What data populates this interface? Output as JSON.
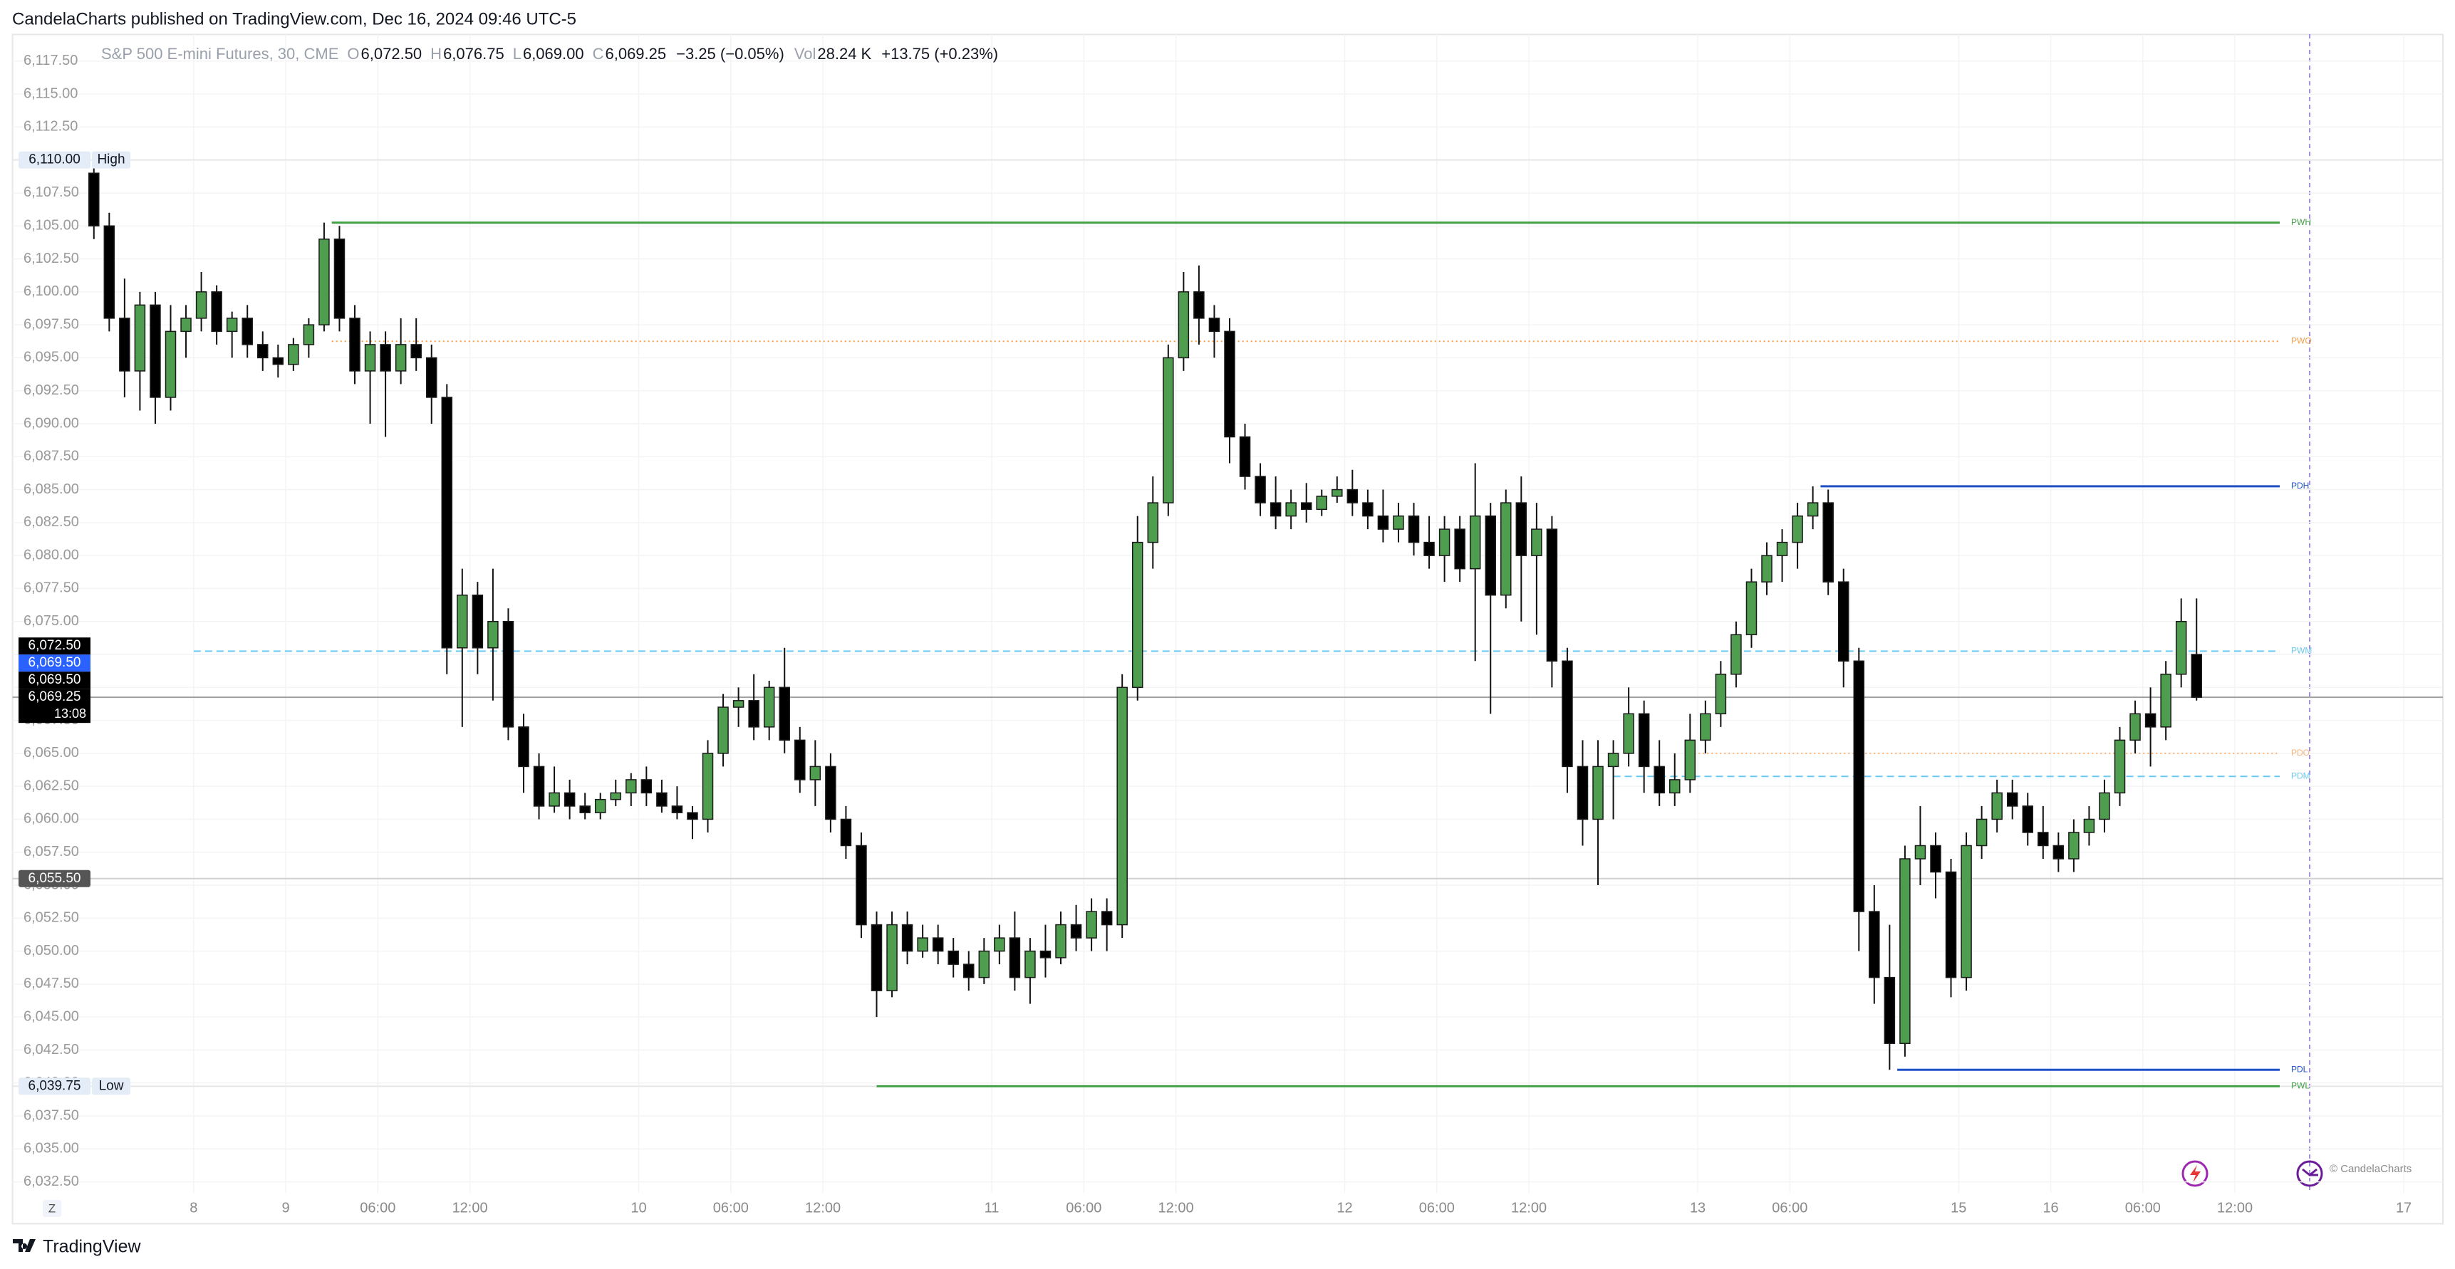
{
  "header": {
    "title": "CandelaCharts published on TradingView.com, Dec 16, 2024 09:46 UTC-5"
  },
  "footer": {
    "brand": "TradingView",
    "watermark": "© CandelaCharts",
    "zoom": "Z"
  },
  "legend": {
    "symbol": "S&P 500 E-mini Futures, 30, CME",
    "fields": [
      {
        "key": "O",
        "value": "6,072.50"
      },
      {
        "key": "H",
        "value": "6,076.75"
      },
      {
        "key": "L",
        "value": "6,069.00"
      },
      {
        "key": "C",
        "value": "6,069.25"
      }
    ],
    "change": "−3.25 (−0.05%)",
    "vol_key": "Vol",
    "vol": "28.24 K",
    "vol_change": "+13.75 (+0.23%)"
  },
  "chart_data": {
    "type": "candlestick",
    "name": "S&P 500 E-mini Futures, 30, CME",
    "up_color": "#4f9d4f",
    "down_color": "#000000",
    "wick_color": "#111111",
    "grid": true,
    "x": [
      0,
      2,
      4,
      6,
      8,
      10,
      12,
      14,
      16,
      18,
      20,
      22,
      24,
      26,
      28,
      30,
      32,
      34,
      36,
      38,
      40,
      42,
      44,
      46,
      48,
      50,
      52,
      54,
      56,
      58,
      60,
      62,
      64,
      66,
      68,
      70,
      72,
      74,
      76,
      78,
      80,
      82,
      84,
      86,
      88,
      90,
      92,
      94,
      96,
      98,
      100,
      102,
      104,
      106,
      108,
      110,
      112,
      114,
      116,
      118,
      120,
      122,
      124,
      126,
      128,
      130,
      132,
      134,
      136,
      138,
      140,
      142,
      144,
      146,
      148,
      150,
      152,
      154,
      156,
      158,
      160,
      162,
      164,
      166,
      168,
      170,
      172,
      174,
      176,
      178,
      180,
      182,
      184,
      186,
      188,
      190,
      192,
      194,
      196,
      198,
      200,
      202,
      204,
      206,
      208,
      210,
      212,
      214,
      216,
      218,
      220,
      222,
      224,
      226,
      228,
      230,
      232,
      234,
      236,
      238,
      240,
      242,
      244,
      246,
      248,
      250,
      252,
      254,
      256,
      258,
      260,
      262,
      264,
      266,
      268,
      270,
      272,
      274
    ],
    "open": [
      6109,
      6105,
      6098,
      6094,
      6099,
      6092,
      6097,
      6098,
      6100,
      6097,
      6098,
      6096,
      6095,
      6094.5,
      6096,
      6097.5,
      6104,
      6098,
      6094,
      6096,
      6094,
      6096,
      6095,
      6092,
      6073,
      6077,
      6073,
      6075,
      6067,
      6064,
      6061,
      6062,
      6061,
      6060.5,
      6061.5,
      6062,
      6063,
      6062,
      6061,
      6060.5,
      6060,
      6065,
      6068.5,
      6069,
      6067,
      6070,
      6066,
      6063,
      6064,
      6060,
      6058,
      6052,
      6047,
      6052,
      6050,
      6051,
      6050,
      6049,
      6048,
      6050,
      6051,
      6048,
      6050,
      6049.5,
      6052,
      6051,
      6053,
      6052,
      6070,
      6081,
      6084,
      6095,
      6100,
      6098,
      6097,
      6089,
      6086,
      6084,
      6083,
      6084,
      6083.5,
      6084.5,
      6085,
      6084,
      6083,
      6082,
      6083,
      6081,
      6080,
      6082,
      6079,
      6083,
      6077,
      6084,
      6080,
      6082,
      6072,
      6064,
      6060,
      6064,
      6065,
      6068,
      6064,
      6062,
      6063,
      6066,
      6068,
      6071,
      6074,
      6078,
      6080,
      6081,
      6083,
      6084,
      6078,
      6072,
      6053,
      6048,
      6043,
      6057,
      6058,
      6056,
      6048,
      6058,
      6060,
      6062,
      6061,
      6059,
      6058,
      6057,
      6059,
      6060,
      6062,
      6066,
      6068,
      6067,
      6071,
      6072.5
    ],
    "high": [
      6109.5,
      6106,
      6101,
      6100,
      6100,
      6099,
      6099,
      6101.5,
      6100.5,
      6098.5,
      6099,
      6097,
      6096,
      6096.5,
      6098,
      6105.25,
      6105,
      6099,
      6097,
      6097,
      6098,
      6098,
      6096,
      6093,
      6079,
      6078,
      6079,
      6076,
      6068,
      6065,
      6064,
      6063,
      6062,
      6062,
      6063,
      6063.5,
      6064,
      6063,
      6062.5,
      6061,
      6066,
      6069.5,
      6070,
      6071,
      6070.5,
      6073,
      6067,
      6066,
      6065,
      6061,
      6059,
      6053,
      6053,
      6053,
      6052,
      6052,
      6051,
      6050,
      6051,
      6052,
      6053,
      6051,
      6052,
      6053,
      6053.5,
      6054,
      6054,
      6071,
      6083,
      6086,
      6096,
      6101.5,
      6102,
      6099,
      6098,
      6090,
      6087,
      6086,
      6085,
      6085.5,
      6085,
      6086,
      6086.5,
      6085,
      6085,
      6084,
      6084,
      6083,
      6083,
      6083,
      6087,
      6084,
      6085,
      6086,
      6084,
      6083,
      6073,
      6066,
      6066,
      6066,
      6070,
      6069,
      6066,
      6065,
      6068,
      6069,
      6072,
      6075,
      6079,
      6081,
      6082,
      6084,
      6085.25,
      6085,
      6079,
      6073,
      6055,
      6052,
      6058,
      6061,
      6059,
      6057,
      6059,
      6061,
      6063,
      6063,
      6062,
      6061,
      6059,
      6060,
      6061,
      6063,
      6067,
      6069,
      6070,
      6072,
      6076.75,
      6076.75
    ],
    "low": [
      6104,
      6097,
      6092,
      6091,
      6090,
      6091,
      6095,
      6097,
      6096,
      6095,
      6095,
      6094,
      6093.5,
      6094,
      6095,
      6097,
      6097,
      6093,
      6090,
      6089,
      6093,
      6094,
      6090,
      6071,
      6067,
      6071,
      6069,
      6066,
      6062,
      6060,
      6060.5,
      6060,
      6060,
      6060,
      6061,
      6061,
      6061,
      6060.5,
      6060,
      6058.5,
      6059,
      6064,
      6067,
      6066,
      6066,
      6065,
      6062,
      6061,
      6059,
      6057,
      6051,
      6045,
      6046.5,
      6049,
      6049.5,
      6049,
      6048,
      6047,
      6047.5,
      6049,
      6047,
      6046,
      6048,
      6049,
      6050,
      6050,
      6050,
      6051,
      6069,
      6079,
      6083,
      6094,
      6096,
      6095,
      6087,
      6085,
      6083,
      6082,
      6082,
      6082.5,
      6083,
      6084,
      6083,
      6082,
      6081,
      6081,
      6080,
      6079,
      6078,
      6078,
      6072,
      6068,
      6076,
      6075,
      6074,
      6070,
      6062,
      6058,
      6055,
      6060,
      6064,
      6062,
      6061,
      6061,
      6062,
      6065,
      6067,
      6070,
      6073,
      6077,
      6078,
      6079,
      6082,
      6077,
      6070,
      6050,
      6046,
      6041,
      6042,
      6055,
      6054,
      6046.5,
      6047,
      6057,
      6059,
      6060,
      6058,
      6057,
      6056,
      6056,
      6058,
      6059,
      6061,
      6065,
      6064,
      6066,
      6070,
      6069
    ],
    "close": [
      6105,
      6098,
      6094,
      6099,
      6092,
      6097,
      6098,
      6100,
      6097,
      6098,
      6096,
      6095,
      6094.5,
      6096,
      6097.5,
      6104,
      6098,
      6094,
      6096,
      6094,
      6096,
      6095,
      6092,
      6073,
      6077,
      6073,
      6075,
      6067,
      6064,
      6061,
      6062,
      6061,
      6060.5,
      6061.5,
      6062,
      6063,
      6062,
      6061,
      6060.5,
      6060,
      6065,
      6068.5,
      6069,
      6067,
      6070,
      6066,
      6063,
      6064,
      6060,
      6058,
      6052,
      6047,
      6052,
      6050,
      6051,
      6050,
      6049,
      6048,
      6050,
      6051,
      6048,
      6050,
      6049.5,
      6052,
      6051,
      6053,
      6052,
      6070,
      6081,
      6084,
      6095,
      6100,
      6098,
      6097,
      6089,
      6086,
      6084,
      6083,
      6084,
      6083.5,
      6084.5,
      6085,
      6084,
      6083,
      6082,
      6083,
      6081,
      6080,
      6082,
      6079,
      6083,
      6077,
      6084,
      6080,
      6082,
      6072,
      6064,
      6060,
      6064,
      6065,
      6068,
      6064,
      6062,
      6063,
      6066,
      6068,
      6071,
      6074,
      6078,
      6080,
      6081,
      6083,
      6084,
      6078,
      6072,
      6053,
      6048,
      6043,
      6057,
      6058,
      6056,
      6048,
      6058,
      6060,
      6062,
      6061,
      6059,
      6058,
      6057,
      6059,
      6060,
      6062,
      6066,
      6068,
      6067,
      6071,
      6075,
      6069.25
    ],
    "xlim": [
      -10.6,
      306.1
    ],
    "xticks": [
      {
        "value": 13,
        "label": "8"
      },
      {
        "value": 25,
        "label": "9"
      },
      {
        "value": 37,
        "label": "06:00"
      },
      {
        "value": 49,
        "label": "12:00"
      },
      {
        "value": 71,
        "label": "10"
      },
      {
        "value": 83,
        "label": "06:00"
      },
      {
        "value": 95,
        "label": "12:00"
      },
      {
        "value": 117,
        "label": "11"
      },
      {
        "value": 129,
        "label": "06:00"
      },
      {
        "value": 141,
        "label": "12:00"
      },
      {
        "value": 163,
        "label": "12"
      },
      {
        "value": 175,
        "label": "06:00"
      },
      {
        "value": 187,
        "label": "12:00"
      },
      {
        "value": 209,
        "label": "13"
      },
      {
        "value": 221,
        "label": "06:00"
      },
      {
        "value": 243,
        "label": "15"
      },
      {
        "value": 255,
        "label": "16"
      },
      {
        "value": 267,
        "label": "06:00"
      },
      {
        "value": 279,
        "label": "12:00"
      },
      {
        "value": 301,
        "label": "17"
      }
    ],
    "ylim": [
      6031.67,
      6119.52
    ],
    "yticks": [
      {
        "value": 6032.5,
        "label": "6,032.50"
      },
      {
        "value": 6035,
        "label": "6,035.00"
      },
      {
        "value": 6037.5,
        "label": "6,037.50"
      },
      {
        "value": 6040,
        "label": "6,040.00"
      },
      {
        "value": 6042.5,
        "label": "6,042.50"
      },
      {
        "value": 6045,
        "label": "6,045.00"
      },
      {
        "value": 6047.5,
        "label": "6,047.50"
      },
      {
        "value": 6050,
        "label": "6,050.00"
      },
      {
        "value": 6052.5,
        "label": "6,052.50"
      },
      {
        "value": 6055,
        "label": "6,055.00"
      },
      {
        "value": 6057.5,
        "label": "6,057.50"
      },
      {
        "value": 6060,
        "label": "6,060.00"
      },
      {
        "value": 6062.5,
        "label": "6,062.50"
      },
      {
        "value": 6065,
        "label": "6,065.00"
      },
      {
        "value": 6067.5,
        "label": "6,067.50"
      },
      {
        "value": 6070,
        "label": "6,070.00"
      },
      {
        "value": 6072.5,
        "label": "6,072.50"
      },
      {
        "value": 6075,
        "label": "6,075.00"
      },
      {
        "value": 6077.5,
        "label": "6,077.50"
      },
      {
        "value": 6080,
        "label": "6,080.00"
      },
      {
        "value": 6082.5,
        "label": "6,082.50"
      },
      {
        "value": 6085,
        "label": "6,085.00"
      },
      {
        "value": 6087.5,
        "label": "6,087.50"
      },
      {
        "value": 6090,
        "label": "6,090.00"
      },
      {
        "value": 6092.5,
        "label": "6,092.50"
      },
      {
        "value": 6095,
        "label": "6,095.00"
      },
      {
        "value": 6097.5,
        "label": "6,097.50"
      },
      {
        "value": 6100,
        "label": "6,100.00"
      },
      {
        "value": 6102.5,
        "label": "6,102.50"
      },
      {
        "value": 6105,
        "label": "6,105.00"
      },
      {
        "value": 6107.5,
        "label": "6,107.50"
      },
      {
        "value": 6110,
        "label": "6,110.00"
      },
      {
        "value": 6112.5,
        "label": "6,112.50"
      },
      {
        "value": 6115,
        "label": "6,115.00"
      },
      {
        "value": 6117.5,
        "label": "6,117.50"
      }
    ],
    "levels": [
      {
        "name": "PWH",
        "value": 6105.25,
        "start": 31,
        "color": "#43a047",
        "style": "solid"
      },
      {
        "name": "PWO",
        "value": 6096.25,
        "start": 31,
        "color": "#f5a04a",
        "style": "dotted"
      },
      {
        "name": "PDH",
        "value": 6085.25,
        "start": 225,
        "color": "#1e50c8",
        "style": "solid"
      },
      {
        "name": "PWM",
        "value": 6072.75,
        "start": 13,
        "color": "#6cc9f0",
        "style": "dashed"
      },
      {
        "name": "PDO",
        "value": 6065,
        "start": 208,
        "color": "#f7b27a",
        "style": "dotted"
      },
      {
        "name": "PDM",
        "value": 6063.25,
        "start": 198,
        "color": "#6cc9f0",
        "style": "dashed"
      },
      {
        "name": "PDL",
        "value": 6041,
        "start": 235,
        "color": "#1e50c8",
        "style": "solid"
      },
      {
        "name": "PWL",
        "value": 6039.75,
        "start": 102,
        "color": "#43a047",
        "style": "solid"
      }
    ],
    "side_tags": [
      {
        "value": 6110,
        "label": "6,110.00",
        "text": "High",
        "bg": "#e3ecf7",
        "fg": "#131722",
        "line": "#e6e6e6"
      },
      {
        "value": 6039.75,
        "label": "6,039.75",
        "text": "Low",
        "bg": "#e3ecf7",
        "fg": "#131722",
        "line": "#e6e6e6"
      },
      {
        "value": 6055.5,
        "label": "6,055.50",
        "bg": "#555555",
        "fg": "#ffffff",
        "line": "#d0d0d0"
      }
    ],
    "last_tags": [
      {
        "value": 6072.5,
        "label": "6,072.50",
        "bg": "#000000"
      },
      {
        "value": 6069.5,
        "label": "6,069.50",
        "bg": "#2962ff"
      },
      {
        "value": 6069.5,
        "label": "6,069.50",
        "bg": "#000000"
      },
      {
        "value": 6069.25,
        "label": "6,069.25",
        "bg": "#000000"
      }
    ],
    "countdown": "13:08",
    "last_line": "#a0a0a0"
  }
}
